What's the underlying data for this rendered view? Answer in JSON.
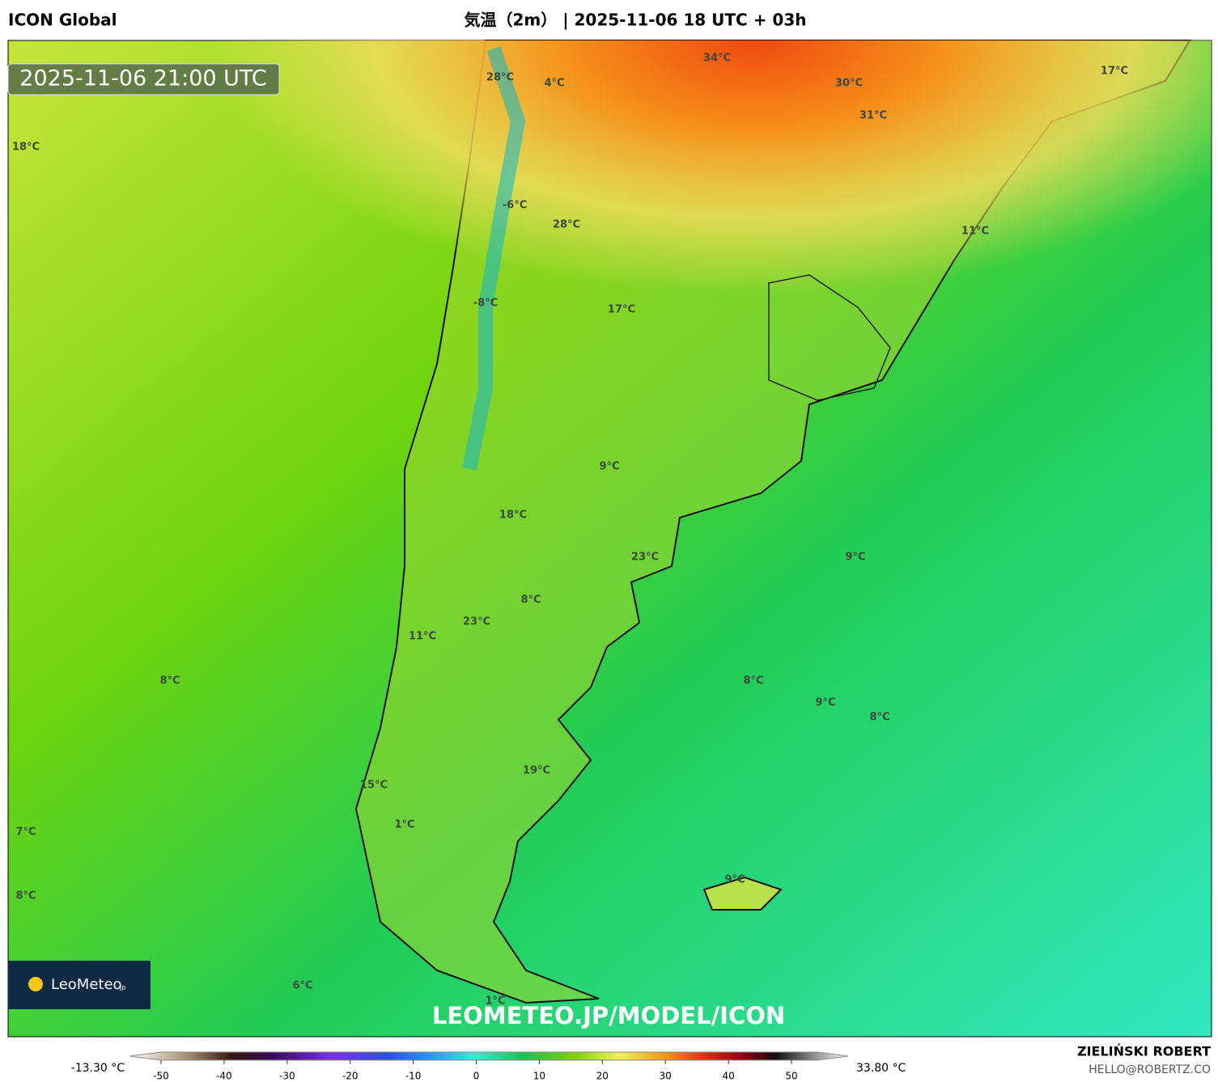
{
  "header": {
    "model": "ICON Global",
    "title": "気温（2m） | 2025-11-06 18 UTC + 03h"
  },
  "map": {
    "timestamp": "2025-11-06 21:00 UTC",
    "labels": [
      "28°C",
      "4°C",
      "34°C",
      "30°C",
      "31°C",
      "17°C",
      "18°C",
      "-6°C",
      "28°C",
      "11°C",
      "-8°C",
      "17°C",
      "9°C",
      "18°C",
      "9°C",
      "23°C",
      "8°C",
      "23°C",
      "11°C",
      "8°C",
      "8°C",
      "9°C",
      "8°C",
      "19°C",
      "15°C",
      "7°C",
      "1°C",
      "9°C",
      "8°C",
      "6°C",
      "1°C"
    ],
    "watermark": "LEOMETEO.JP/MODEL/ICON",
    "logo": {
      "name": "LeoMeteo",
      "suffix": "jp"
    }
  },
  "colorbar": {
    "min_label": "-13.30 °C",
    "max_label": "33.80 °C",
    "ticks": [
      -50,
      -40,
      -30,
      -20,
      -10,
      0,
      10,
      20,
      30,
      40,
      50
    ]
  },
  "footer": {
    "author": "ZIELIŃSKI ROBERT",
    "contact": "HELLO@ROBERTZ.CO"
  }
}
